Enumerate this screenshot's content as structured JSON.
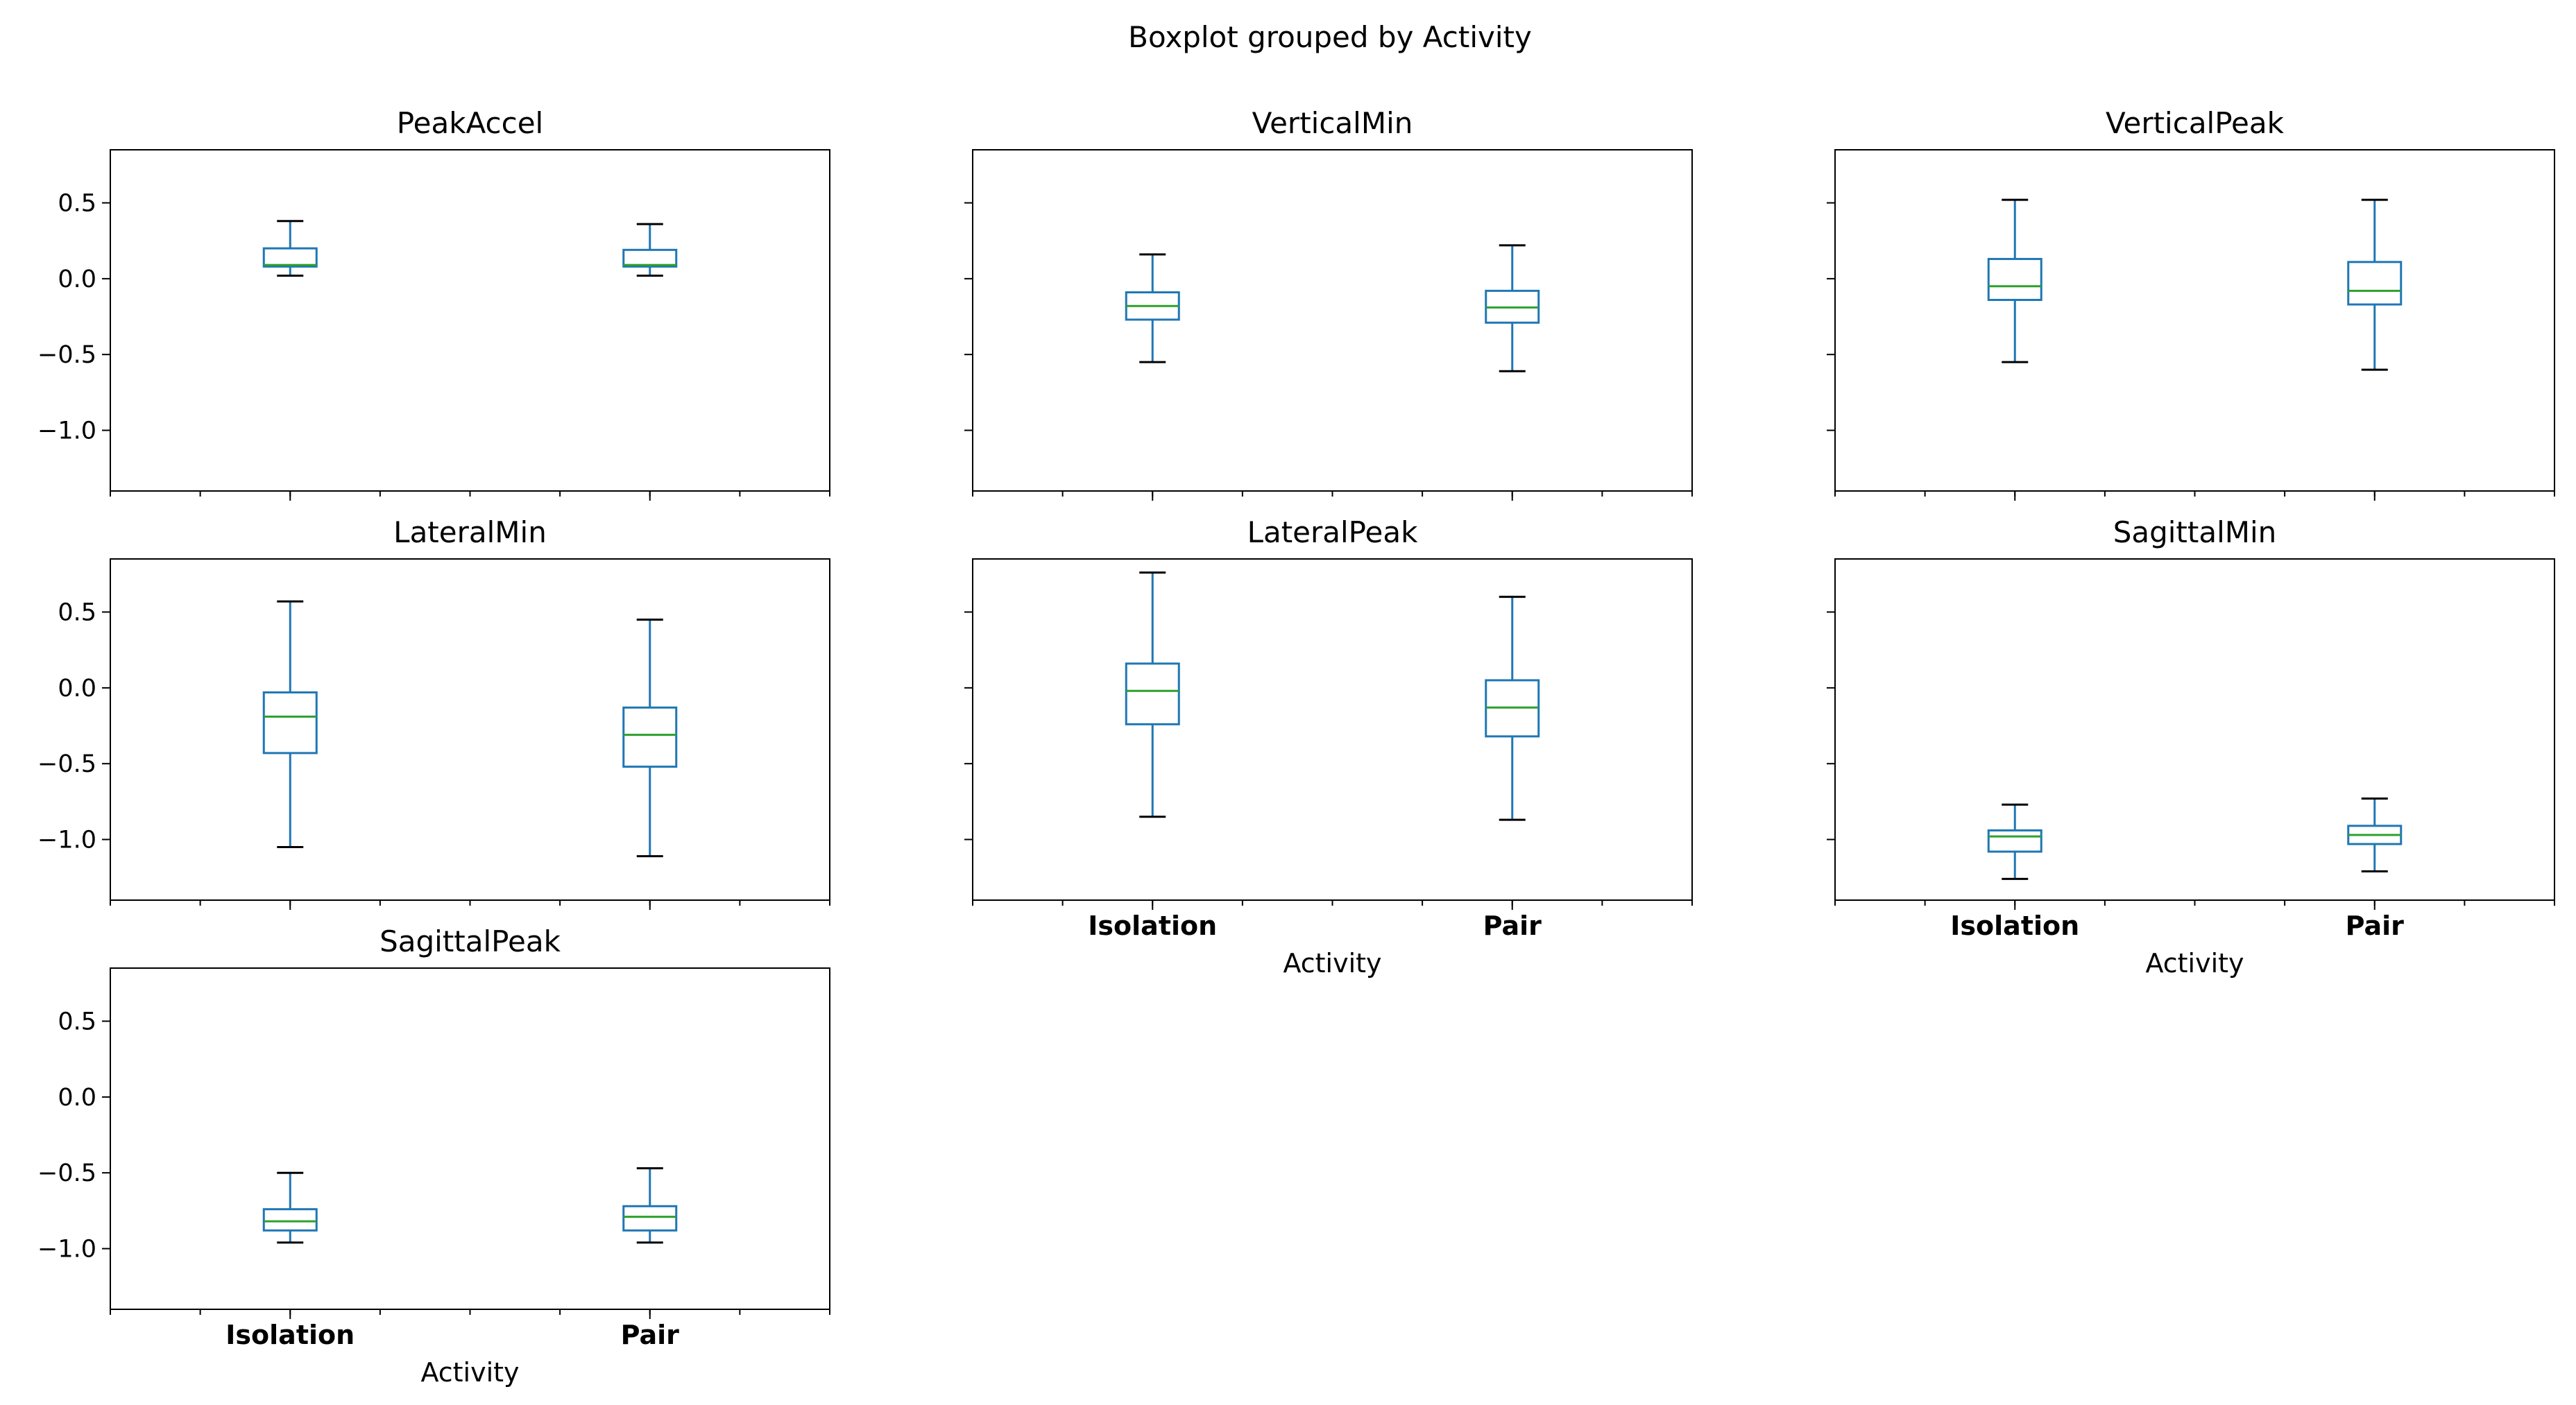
{
  "chart_data": {
    "type": "boxplot",
    "title": "Boxplot grouped by Activity",
    "xlabel": "Activity",
    "categories": [
      "Isolation",
      "Pair"
    ],
    "ylim": [
      -1.4,
      0.85
    ],
    "yticks": [
      -1.0,
      -0.5,
      0.0,
      0.5
    ],
    "ytick_labels": [
      "−1.0",
      "−0.5",
      "0.0",
      "0.5"
    ],
    "colors": {
      "box": "#1f77b4",
      "median": "#2ca02c",
      "whisker_cap": "#000000",
      "axes": "#000000"
    },
    "panels": [
      {
        "title": "PeakAccel",
        "boxes": [
          {
            "category": "Isolation",
            "whislo": 0.02,
            "q1": 0.08,
            "median": 0.09,
            "q3": 0.2,
            "whishi": 0.38
          },
          {
            "category": "Pair",
            "whislo": 0.02,
            "q1": 0.08,
            "median": 0.09,
            "q3": 0.19,
            "whishi": 0.36
          }
        ]
      },
      {
        "title": "VerticalMin",
        "boxes": [
          {
            "category": "Isolation",
            "whislo": -0.55,
            "q1": -0.27,
            "median": -0.18,
            "q3": -0.09,
            "whishi": 0.16
          },
          {
            "category": "Pair",
            "whislo": -0.61,
            "q1": -0.29,
            "median": -0.19,
            "q3": -0.08,
            "whishi": 0.22
          }
        ]
      },
      {
        "title": "VerticalPeak",
        "boxes": [
          {
            "category": "Isolation",
            "whislo": -0.55,
            "q1": -0.14,
            "median": -0.05,
            "q3": 0.13,
            "whishi": 0.52
          },
          {
            "category": "Pair",
            "whislo": -0.6,
            "q1": -0.17,
            "median": -0.08,
            "q3": 0.11,
            "whishi": 0.52
          }
        ]
      },
      {
        "title": "LateralMin",
        "boxes": [
          {
            "category": "Isolation",
            "whislo": -1.05,
            "q1": -0.43,
            "median": -0.19,
            "q3": -0.03,
            "whishi": 0.57
          },
          {
            "category": "Pair",
            "whislo": -1.11,
            "q1": -0.52,
            "median": -0.31,
            "q3": -0.13,
            "whishi": 0.45
          }
        ]
      },
      {
        "title": "LateralPeak",
        "boxes": [
          {
            "category": "Isolation",
            "whislo": -0.85,
            "q1": -0.24,
            "median": -0.02,
            "q3": 0.16,
            "whishi": 0.76
          },
          {
            "category": "Pair",
            "whislo": -0.87,
            "q1": -0.32,
            "median": -0.13,
            "q3": 0.05,
            "whishi": 0.6
          }
        ]
      },
      {
        "title": "SagittalMin",
        "boxes": [
          {
            "category": "Isolation",
            "whislo": -1.26,
            "q1": -1.08,
            "median": -0.98,
            "q3": -0.94,
            "whishi": -0.77
          },
          {
            "category": "Pair",
            "whislo": -1.21,
            "q1": -1.03,
            "median": -0.97,
            "q3": -0.91,
            "whishi": -0.73
          }
        ]
      },
      {
        "title": "SagittalPeak",
        "boxes": [
          {
            "category": "Isolation",
            "whislo": -0.96,
            "q1": -0.88,
            "median": -0.82,
            "q3": -0.74,
            "whishi": -0.5
          },
          {
            "category": "Pair",
            "whislo": -0.96,
            "q1": -0.88,
            "median": -0.79,
            "q3": -0.72,
            "whishi": -0.47
          }
        ]
      }
    ]
  }
}
